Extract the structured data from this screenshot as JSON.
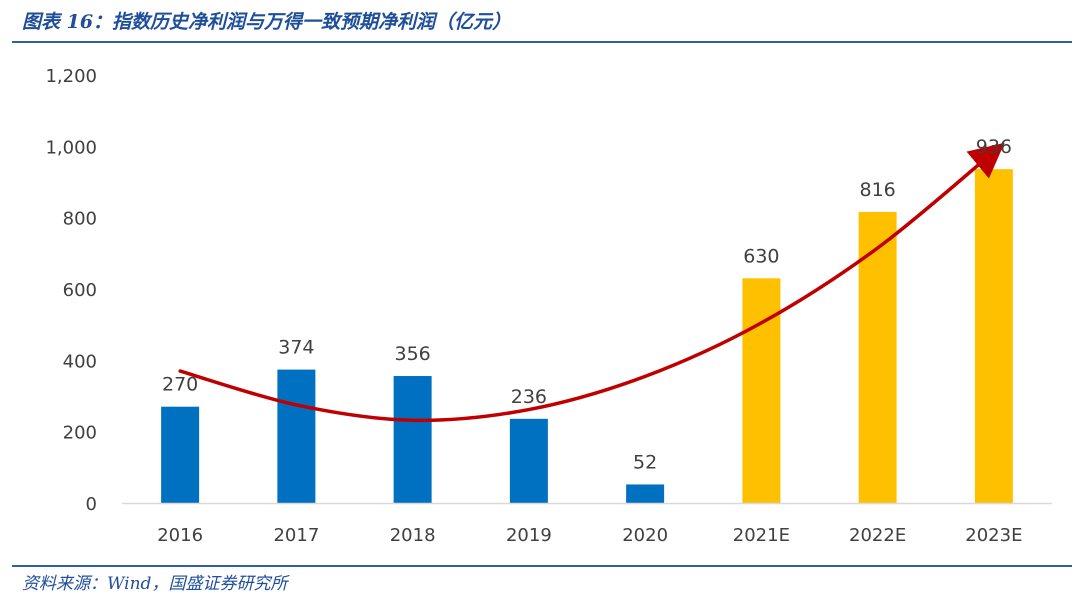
{
  "header": {
    "title": "图表 16：指数历史净利润与万得一致预期净利润（亿元）"
  },
  "footer": {
    "source": "资料来源：Wind，国盛证券研究所"
  },
  "chart_data": {
    "type": "bar",
    "title": "图表 16：指数历史净利润与万得一致预期净利润（亿元）",
    "xlabel": "",
    "ylabel": "",
    "categories": [
      "2016",
      "2017",
      "2018",
      "2019",
      "2020",
      "2021E",
      "2022E",
      "2023E"
    ],
    "values": [
      270,
      374,
      356,
      236,
      52,
      630,
      816,
      936
    ],
    "data_labels": [
      "270",
      "374",
      "356",
      "236",
      "52",
      "630",
      "816",
      "936"
    ],
    "ylim": [
      0,
      1200
    ],
    "yticks": [
      0,
      200,
      400,
      600,
      800,
      1000,
      1200
    ],
    "ytick_labels": [
      "0",
      "200",
      "400",
      "600",
      "800",
      "1,000",
      "1,200"
    ],
    "bar_colors": [
      "#0070C0",
      "#0070C0",
      "#0070C0",
      "#0070C0",
      "#0070C0",
      "#FFC000",
      "#FFC000",
      "#FFC000"
    ],
    "trend_arrow": {
      "color": "#C00000",
      "points": [
        {
          "category": "2016",
          "value": 370
        },
        {
          "category": "2017",
          "value": 275
        },
        {
          "category": "2018",
          "value": 232
        },
        {
          "category": "2019",
          "value": 262
        },
        {
          "category": "2020",
          "value": 355
        },
        {
          "category": "2021E",
          "value": 505
        },
        {
          "category": "2022E",
          "value": 715
        },
        {
          "category": "2023E",
          "value": 985
        }
      ]
    },
    "grid": false,
    "legend": "none"
  }
}
